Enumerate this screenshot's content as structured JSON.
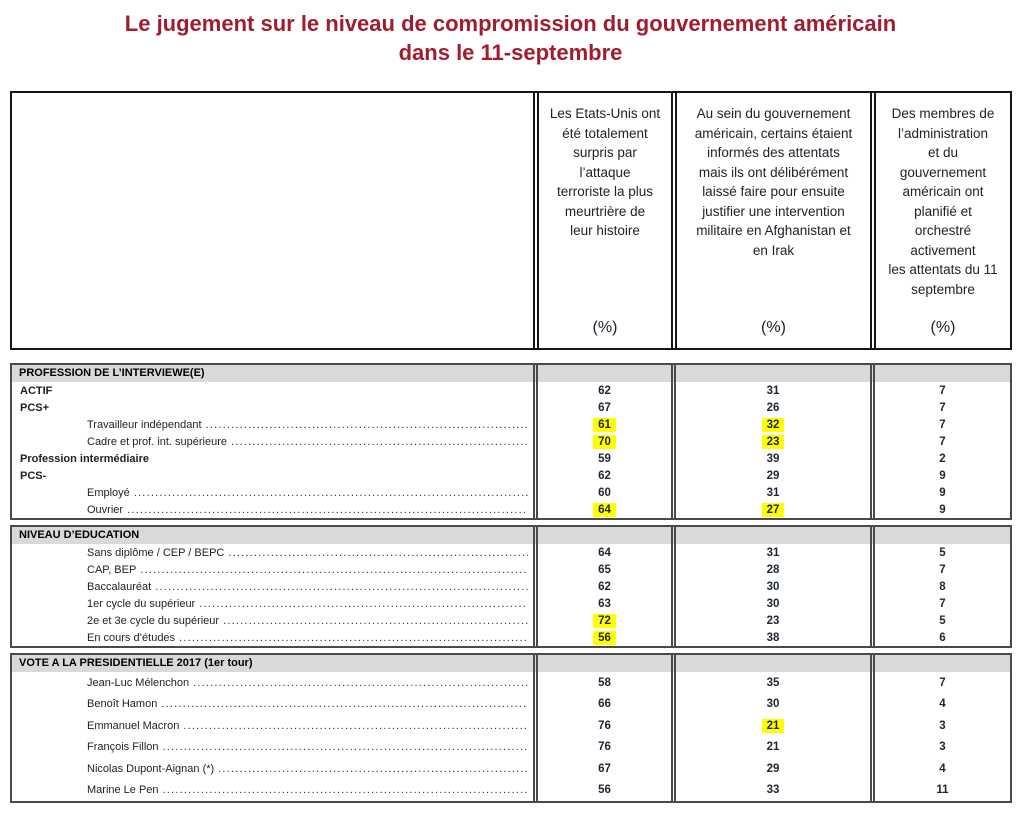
{
  "title": {
    "line1": "Le jugement sur le niveau de compromission du gouvernement américain",
    "line2": "dans le 11-septembre"
  },
  "columns": [
    {
      "text": "Les Etats-Unis ont\nété totalement\nsurpris par\nl’attaque\nterroriste la plus\nmeurtrière de\nleur histoire",
      "unit": "(%)"
    },
    {
      "text": "Au sein du gouvernement\naméricain, certains étaient\ninformés des attentats\nmais ils ont délibérément\nlaissé faire pour ensuite\njustifier une intervention\nmilitaire en Afghanistan et\nen Irak",
      "unit": "(%)"
    },
    {
      "text": "Des membres de\nl’administration\net du\ngouvernement\naméricain ont\nplanifié et\norchestré\nactivement\nles attentats du 11\nseptembre",
      "unit": "(%)"
    }
  ],
  "sections": [
    {
      "header": "PROFESSION DE L’INTERVIEWE(E)",
      "rows": [
        {
          "label": "ACTIF",
          "bold": true,
          "indent": false,
          "leader": false,
          "values": [
            {
              "v": "62"
            },
            {
              "v": "31"
            },
            {
              "v": "7"
            }
          ]
        },
        {
          "label": "PCS+",
          "bold": true,
          "indent": false,
          "leader": false,
          "values": [
            {
              "v": "67"
            },
            {
              "v": "26"
            },
            {
              "v": "7"
            }
          ]
        },
        {
          "label": "Travailleur indépendant",
          "bold": false,
          "indent": true,
          "leader": true,
          "values": [
            {
              "v": "61",
              "hl": true
            },
            {
              "v": "32",
              "hl": true
            },
            {
              "v": "7"
            }
          ]
        },
        {
          "label": "Cadre et prof. int. supérieure",
          "bold": false,
          "indent": true,
          "leader": true,
          "values": [
            {
              "v": "70",
              "hl": true
            },
            {
              "v": "23",
              "hl": true
            },
            {
              "v": "7"
            }
          ]
        },
        {
          "label": "Profession intermédiaire",
          "bold": true,
          "indent": false,
          "leader": false,
          "values": [
            {
              "v": "59"
            },
            {
              "v": "39"
            },
            {
              "v": "2"
            }
          ]
        },
        {
          "label": "PCS-",
          "bold": true,
          "indent": false,
          "leader": false,
          "values": [
            {
              "v": "62"
            },
            {
              "v": "29"
            },
            {
              "v": "9"
            }
          ]
        },
        {
          "label": "Employé",
          "bold": false,
          "indent": true,
          "leader": true,
          "values": [
            {
              "v": "60"
            },
            {
              "v": "31"
            },
            {
              "v": "9"
            }
          ]
        },
        {
          "label": "Ouvrier",
          "bold": false,
          "indent": true,
          "leader": true,
          "values": [
            {
              "v": "64",
              "hl": true
            },
            {
              "v": "27",
              "hl": true
            },
            {
              "v": "9"
            }
          ]
        }
      ]
    },
    {
      "header": "NIVEAU D’EDUCATION",
      "rows": [
        {
          "label": "Sans diplôme / CEP / BEPC",
          "bold": false,
          "indent": true,
          "leader": true,
          "values": [
            {
              "v": "64"
            },
            {
              "v": "31"
            },
            {
              "v": "5"
            }
          ]
        },
        {
          "label": "CAP, BEP",
          "bold": false,
          "indent": true,
          "leader": true,
          "values": [
            {
              "v": "65"
            },
            {
              "v": "28"
            },
            {
              "v": "7"
            }
          ]
        },
        {
          "label": "Baccalauréat",
          "bold": false,
          "indent": true,
          "leader": true,
          "values": [
            {
              "v": "62"
            },
            {
              "v": "30"
            },
            {
              "v": "8"
            }
          ]
        },
        {
          "label": "1er cycle du supérieur",
          "bold": false,
          "indent": true,
          "leader": true,
          "values": [
            {
              "v": "63"
            },
            {
              "v": "30"
            },
            {
              "v": "7"
            }
          ]
        },
        {
          "label": "2e et 3e cycle du supérieur",
          "bold": false,
          "indent": true,
          "leader": true,
          "values": [
            {
              "v": "72",
              "hl": true
            },
            {
              "v": "23"
            },
            {
              "v": "5"
            }
          ]
        },
        {
          "label": "En cours d’études",
          "bold": false,
          "indent": true,
          "leader": true,
          "values": [
            {
              "v": "56",
              "hl": true
            },
            {
              "v": "38"
            },
            {
              "v": "6"
            }
          ]
        }
      ]
    },
    {
      "header": "VOTE A LA PRESIDENTIELLE 2017 (1er tour)",
      "rows": [
        {
          "label": "Jean-Luc Mélenchon",
          "bold": false,
          "indent": true,
          "leader": true,
          "values": [
            {
              "v": "58"
            },
            {
              "v": "35"
            },
            {
              "v": "7"
            }
          ]
        },
        {
          "label": "Benoît Hamon",
          "bold": false,
          "indent": true,
          "leader": true,
          "values": [
            {
              "v": "66"
            },
            {
              "v": "30"
            },
            {
              "v": "4"
            }
          ]
        },
        {
          "label": "Emmanuel Macron",
          "bold": false,
          "indent": true,
          "leader": true,
          "values": [
            {
              "v": "76"
            },
            {
              "v": "21",
              "hl": true
            },
            {
              "v": "3"
            }
          ]
        },
        {
          "label": "François Fillon",
          "bold": false,
          "indent": true,
          "leader": true,
          "values": [
            {
              "v": "76"
            },
            {
              "v": "21"
            },
            {
              "v": "3"
            }
          ]
        },
        {
          "label": "Nicolas Dupont-Aignan (*)",
          "bold": false,
          "indent": true,
          "leader": true,
          "values": [
            {
              "v": "67"
            },
            {
              "v": "29"
            },
            {
              "v": "4"
            }
          ]
        },
        {
          "label": "Marine Le Pen",
          "bold": false,
          "indent": true,
          "leader": true,
          "values": [
            {
              "v": "56"
            },
            {
              "v": "33"
            },
            {
              "v": "11"
            }
          ]
        }
      ]
    }
  ],
  "colors": {
    "title_red": "#a21c30",
    "highlight_yellow": "#ffff00",
    "band_gray": "#d9d9d9"
  }
}
